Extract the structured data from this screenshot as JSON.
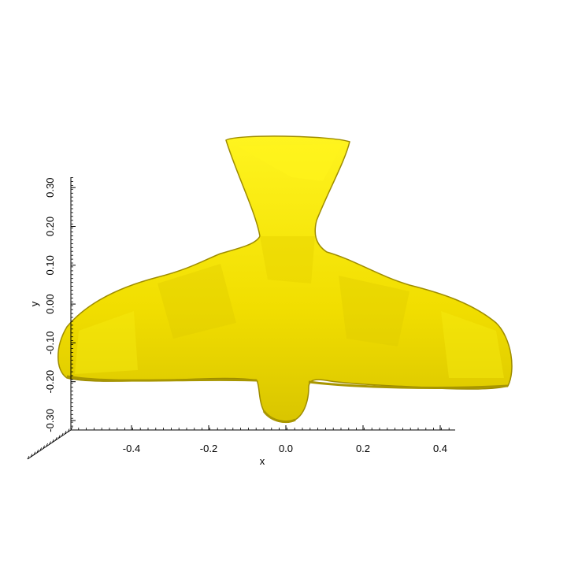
{
  "plot": {
    "x_axis": {
      "label": "x",
      "ticks": [
        "-0.4",
        "-0.2",
        "0.0",
        "0.2",
        "0.4"
      ]
    },
    "y_axis": {
      "label": "y",
      "ticks": [
        "-0.30",
        "-0.20",
        "-0.10",
        "0.00",
        "0.10",
        "0.20",
        "0.30"
      ]
    },
    "surface_color": "#f2e200",
    "shadow_color": "#b8a800",
    "highlight_color": "#fff21a"
  }
}
